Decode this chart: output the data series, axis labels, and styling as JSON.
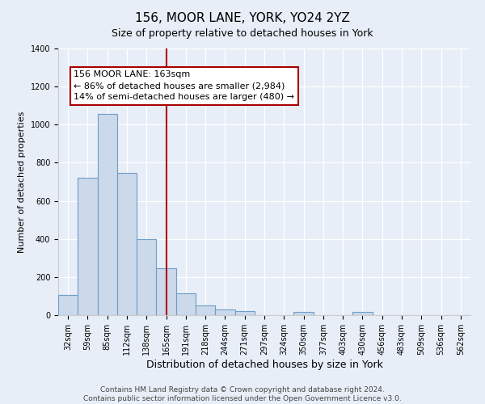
{
  "title": "156, MOOR LANE, YORK, YO24 2YZ",
  "subtitle": "Size of property relative to detached houses in York",
  "xlabel": "Distribution of detached houses by size in York",
  "ylabel": "Number of detached properties",
  "bar_color": "#ccd9ea",
  "bar_edge_color": "#6b9ec8",
  "bg_color": "#e8eef7",
  "plot_bg_color": "#e8eef7",
  "grid_color": "#ffffff",
  "vline_color": "#aa0000",
  "annotation_box_edgecolor": "#aa0000",
  "annotation_line1": "156 MOOR LANE: 163sqm",
  "annotation_line2": "← 86% of detached houses are smaller (2,984)",
  "annotation_line3": "14% of semi-detached houses are larger (480) →",
  "categories": [
    "32sqm",
    "59sqm",
    "85sqm",
    "112sqm",
    "138sqm",
    "165sqm",
    "191sqm",
    "218sqm",
    "244sqm",
    "271sqm",
    "297sqm",
    "324sqm",
    "350sqm",
    "377sqm",
    "403sqm",
    "430sqm",
    "456sqm",
    "483sqm",
    "509sqm",
    "536sqm",
    "562sqm"
  ],
  "values": [
    108,
    720,
    1058,
    748,
    400,
    245,
    113,
    50,
    28,
    22,
    0,
    0,
    15,
    0,
    0,
    15,
    0,
    0,
    0,
    0,
    0
  ],
  "vline_index": 5,
  "ylim": [
    0,
    1400
  ],
  "yticks": [
    0,
    200,
    400,
    600,
    800,
    1000,
    1200,
    1400
  ],
  "footer": "Contains HM Land Registry data © Crown copyright and database right 2024.\nContains public sector information licensed under the Open Government Licence v3.0.",
  "title_fontsize": 11,
  "subtitle_fontsize": 9,
  "xlabel_fontsize": 9,
  "ylabel_fontsize": 8,
  "tick_fontsize": 7,
  "ann_fontsize": 8,
  "footer_fontsize": 6.5
}
